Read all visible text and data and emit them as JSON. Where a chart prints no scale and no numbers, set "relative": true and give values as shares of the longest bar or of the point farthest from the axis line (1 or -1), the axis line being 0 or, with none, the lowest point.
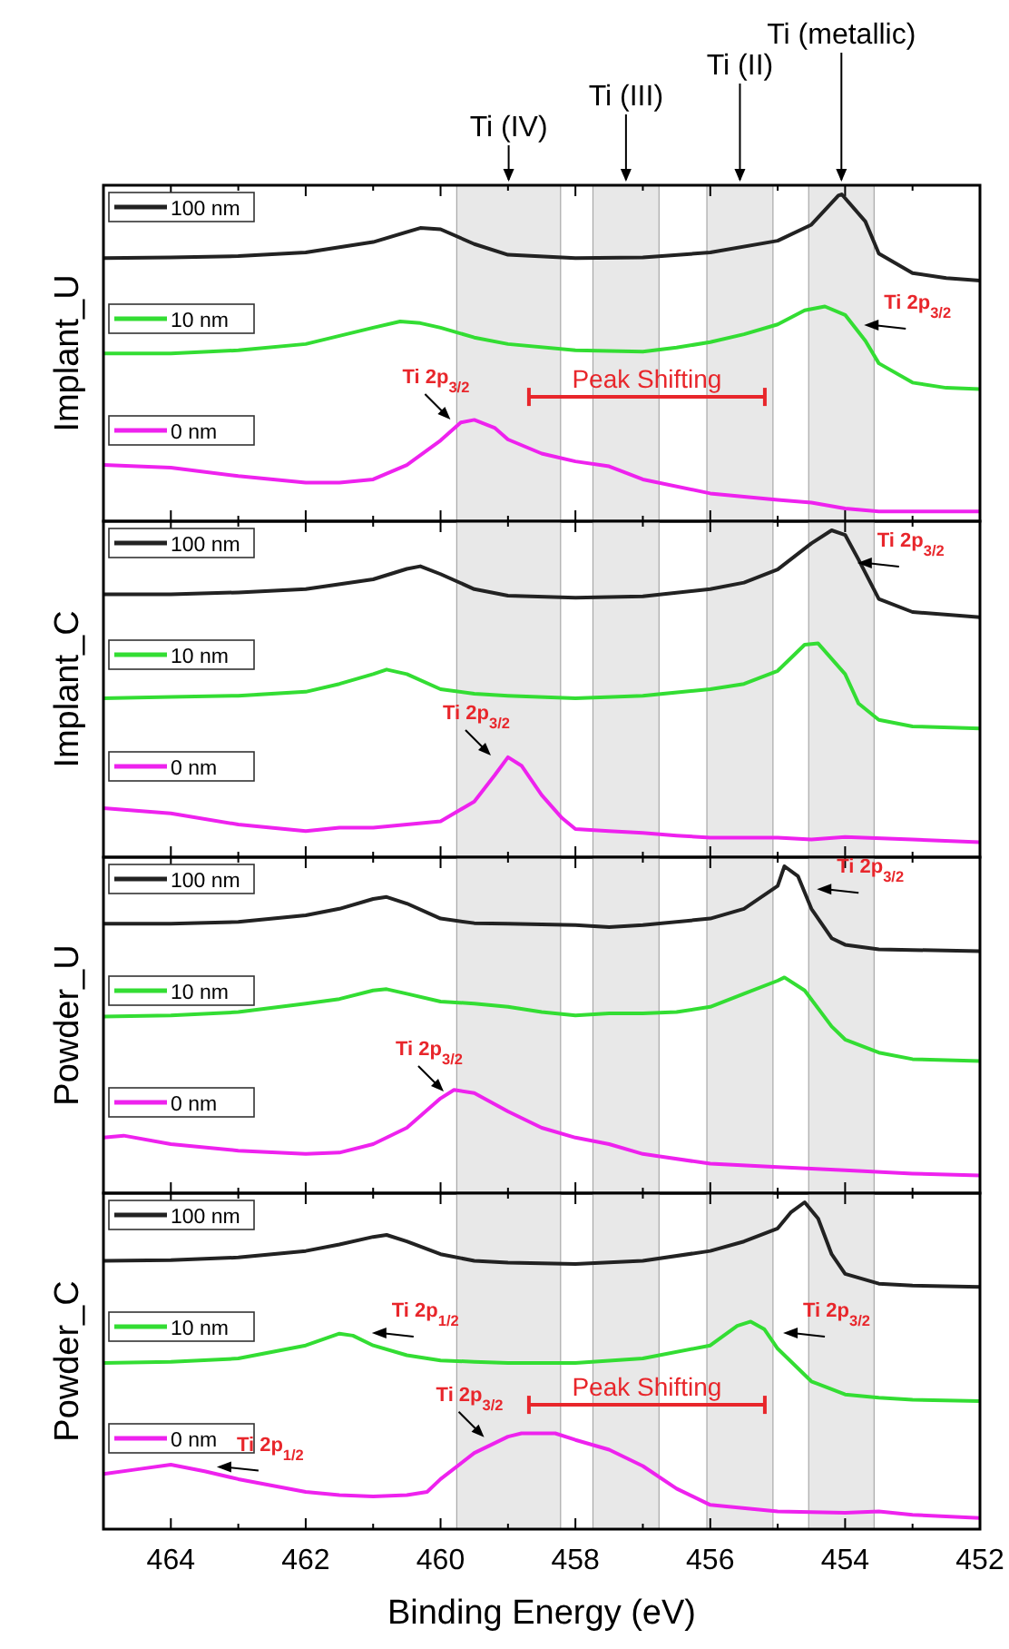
{
  "chart_data": [
    {
      "type": "line",
      "relative": true,
      "ylabel": "Implant_U",
      "xlim": [
        465,
        452
      ],
      "xticks": [
        464,
        {
          "value": 463,
          "label": null
        },
        462,
        {
          "value": 461,
          "label": null
        },
        460,
        {
          "value": 459,
          "label": null
        },
        458,
        {
          "value": 457,
          "label": null
        },
        456,
        {
          "value": 455,
          "label": null
        },
        454,
        {
          "value": 453,
          "label": null
        },
        452
      ],
      "tick_labels": false,
      "legend": "left",
      "bands": [
        {
          "axis": "x",
          "from": 459.76,
          "to": 458.22,
          "label": "Ti (IV)"
        },
        {
          "axis": "x",
          "from": 457.74,
          "to": 456.76,
          "label": "Ti (III)"
        },
        {
          "axis": "x",
          "from": 456.05,
          "to": 455.07,
          "label": "Ti (II)"
        },
        {
          "axis": "x",
          "from": 454.54,
          "to": 453.57,
          "label": "Ti (metallic)"
        }
      ],
      "annotations": [
        {
          "text": "Ti 2p$_{3/2}$",
          "x": 459.8,
          "y": 0.3
        },
        {
          "text": "Ti 2p$_{3/2}$",
          "x": 453.8,
          "y": 0.6
        },
        "Peak Shifting"
      ],
      "series": [
        {
          "name": "100 nm",
          "color": "#222222",
          "x": [
            465,
            464,
            463,
            462,
            461,
            460.3,
            460,
            459.5,
            459,
            458,
            457,
            456,
            455,
            454.5,
            454.1,
            454.05,
            453.7,
            453.5,
            453,
            452.5,
            452
          ],
          "values": [
            0.805,
            0.807,
            0.811,
            0.822,
            0.854,
            0.897,
            0.893,
            0.848,
            0.815,
            0.805,
            0.807,
            0.822,
            0.858,
            0.907,
            0.996,
            1,
            0.917,
            0.819,
            0.759,
            0.744,
            0.736
          ]
        },
        {
          "name": "10 nm",
          "color": "#33dd33",
          "x": [
            465,
            464,
            463,
            462,
            461,
            460.6,
            460.3,
            460,
            459.5,
            459,
            458,
            457,
            456.5,
            456,
            455.5,
            455,
            454.6,
            454.3,
            454,
            453.7,
            453.5,
            453,
            452.5,
            452
          ],
          "values": [
            0.513,
            0.513,
            0.523,
            0.542,
            0.592,
            0.611,
            0.606,
            0.592,
            0.562,
            0.542,
            0.523,
            0.519,
            0.531,
            0.548,
            0.572,
            0.602,
            0.645,
            0.657,
            0.631,
            0.552,
            0.483,
            0.424,
            0.408,
            0.404
          ]
        },
        {
          "name": "0 nm",
          "color": "#ee22ee",
          "x": [
            465,
            464,
            463,
            462,
            461.5,
            461,
            460.5,
            460,
            459.7,
            459.5,
            459.2,
            459,
            458.5,
            458,
            457.5,
            457,
            456,
            455,
            454.5,
            454,
            453.5,
            453,
            452
          ],
          "values": [
            0.172,
            0.164,
            0.138,
            0.118,
            0.118,
            0.128,
            0.172,
            0.247,
            0.302,
            0.31,
            0.286,
            0.25,
            0.207,
            0.183,
            0.168,
            0.128,
            0.085,
            0.065,
            0.057,
            0.039,
            0.03,
            0.03,
            0.03
          ]
        }
      ]
    },
    {
      "type": "line",
      "relative": true,
      "ylabel": "Implant_C",
      "xlim": [
        465,
        452
      ],
      "xticks": [
        464,
        {
          "value": 463,
          "label": null
        },
        462,
        {
          "value": 461,
          "label": null
        },
        460,
        {
          "value": 459,
          "label": null
        },
        458,
        {
          "value": 457,
          "label": null
        },
        456,
        {
          "value": 455,
          "label": null
        },
        454,
        {
          "value": 453,
          "label": null
        },
        452
      ],
      "tick_labels": false,
      "legend": "left",
      "bands": [
        {
          "axis": "x",
          "from": 459.76,
          "to": 458.22
        },
        {
          "axis": "x",
          "from": 457.74,
          "to": 456.76
        },
        {
          "axis": "x",
          "from": 456.05,
          "to": 455.07
        },
        {
          "axis": "x",
          "from": 454.54,
          "to": 453.57
        }
      ],
      "annotations": [
        {
          "text": "Ti 2p$_{3/2}$",
          "x": 453.9,
          "y": 0.9
        },
        {
          "text": "Ti 2p$_{3/2}$",
          "x": 459.2,
          "y": 0.3
        }
      ],
      "series": [
        {
          "name": "100 nm",
          "color": "#222222",
          "x": [
            465,
            464,
            463,
            462,
            461,
            460.5,
            460.3,
            460,
            459.5,
            459,
            458,
            457,
            456,
            455.5,
            455,
            454.5,
            454.2,
            454,
            453.8,
            453.5,
            453,
            452
          ],
          "values": [
            0.804,
            0.804,
            0.81,
            0.82,
            0.85,
            0.882,
            0.89,
            0.866,
            0.82,
            0.8,
            0.794,
            0.798,
            0.82,
            0.84,
            0.88,
            0.96,
            1,
            0.986,
            0.91,
            0.79,
            0.75,
            0.734
          ]
        },
        {
          "name": "10 nm",
          "color": "#33dd33",
          "x": [
            465,
            464,
            463,
            462,
            461.5,
            461,
            460.8,
            460.5,
            460,
            459.5,
            459,
            458,
            457,
            456,
            455.5,
            455,
            454.6,
            454.4,
            454,
            453.8,
            453.5,
            453,
            452
          ],
          "values": [
            0.486,
            0.49,
            0.494,
            0.506,
            0.53,
            0.56,
            0.574,
            0.56,
            0.514,
            0.5,
            0.494,
            0.486,
            0.494,
            0.514,
            0.53,
            0.57,
            0.65,
            0.654,
            0.56,
            0.47,
            0.42,
            0.4,
            0.394
          ]
        },
        {
          "name": "0 nm",
          "color": "#ee22ee",
          "x": [
            465,
            464,
            463,
            462,
            461.5,
            461,
            460.5,
            460,
            459.5,
            459.2,
            459,
            458.8,
            458.5,
            458.2,
            458,
            457.5,
            457,
            456.5,
            456,
            455,
            454.5,
            454,
            453,
            452
          ],
          "values": [
            0.15,
            0.134,
            0.1,
            0.08,
            0.09,
            0.09,
            0.1,
            0.11,
            0.17,
            0.25,
            0.306,
            0.28,
            0.19,
            0.12,
            0.086,
            0.08,
            0.074,
            0.066,
            0.06,
            0.06,
            0.054,
            0.062,
            0.054,
            0.046
          ]
        }
      ]
    },
    {
      "type": "line",
      "relative": true,
      "ylabel": "Powder_U",
      "xlim": [
        465,
        452
      ],
      "xticks": [
        464,
        {
          "value": 463,
          "label": null
        },
        462,
        {
          "value": 461,
          "label": null
        },
        460,
        {
          "value": 459,
          "label": null
        },
        458,
        {
          "value": 457,
          "label": null
        },
        456,
        {
          "value": 455,
          "label": null
        },
        454,
        {
          "value": 453,
          "label": null
        },
        452
      ],
      "tick_labels": false,
      "legend": "left",
      "bands": [
        {
          "axis": "x",
          "from": 459.76,
          "to": 458.22
        },
        {
          "axis": "x",
          "from": 457.74,
          "to": 456.76
        },
        {
          "axis": "x",
          "from": 456.05,
          "to": 455.07
        },
        {
          "axis": "x",
          "from": 454.54,
          "to": 453.57
        }
      ],
      "annotations": [
        {
          "text": "Ti 2p$_{3/2}$",
          "x": 454.5,
          "y": 0.93
        },
        {
          "text": "Ti 2p$_{3/2}$",
          "x": 459.9,
          "y": 0.3
        }
      ],
      "series": [
        {
          "name": "100 nm",
          "color": "#222222",
          "x": [
            465,
            464,
            463,
            462,
            461.5,
            461,
            460.8,
            460.5,
            460,
            459.5,
            459,
            458,
            457.5,
            457,
            456,
            455.5,
            455,
            454.9,
            454.7,
            454.5,
            454.2,
            454,
            453.5,
            453,
            452
          ],
          "values": [
            0.824,
            0.824,
            0.83,
            0.85,
            0.87,
            0.9,
            0.906,
            0.886,
            0.84,
            0.826,
            0.824,
            0.82,
            0.814,
            0.82,
            0.84,
            0.87,
            0.94,
            1,
            0.97,
            0.87,
            0.78,
            0.76,
            0.746,
            0.744,
            0.74
          ]
        },
        {
          "name": "10 nm",
          "color": "#33dd33",
          "x": [
            465,
            464,
            463,
            462,
            461.5,
            461,
            460.8,
            460.5,
            460,
            459.5,
            459,
            458.5,
            458,
            457.5,
            457,
            456.5,
            456,
            455.5,
            455,
            454.9,
            454.6,
            454.2,
            454,
            453.5,
            453,
            452
          ],
          "values": [
            0.54,
            0.544,
            0.554,
            0.58,
            0.594,
            0.62,
            0.624,
            0.61,
            0.586,
            0.58,
            0.57,
            0.554,
            0.544,
            0.55,
            0.55,
            0.554,
            0.57,
            0.61,
            0.65,
            0.66,
            0.62,
            0.51,
            0.47,
            0.43,
            0.41,
            0.404
          ]
        },
        {
          "name": "0 nm",
          "color": "#ee22ee",
          "x": [
            465,
            464.7,
            464,
            463,
            462,
            461.5,
            461,
            460.5,
            460,
            459.8,
            459.5,
            459,
            458.5,
            458,
            457.5,
            457,
            456,
            455,
            454,
            453,
            452
          ],
          "values": [
            0.17,
            0.176,
            0.15,
            0.13,
            0.12,
            0.124,
            0.15,
            0.2,
            0.29,
            0.316,
            0.306,
            0.25,
            0.2,
            0.17,
            0.15,
            0.12,
            0.09,
            0.08,
            0.07,
            0.06,
            0.054
          ]
        }
      ]
    },
    {
      "type": "line",
      "relative": true,
      "ylabel": "Powder_C",
      "xlabel": "Binding Energy (eV)",
      "xlim": [
        465,
        452
      ],
      "xticks": [
        464,
        {
          "value": 463,
          "label": null
        },
        462,
        {
          "value": 461,
          "label": null
        },
        460,
        {
          "value": 459,
          "label": null
        },
        458,
        {
          "value": 457,
          "label": null
        },
        456,
        {
          "value": 455,
          "label": null
        },
        454,
        {
          "value": 453,
          "label": null
        },
        452
      ],
      "tick_labels": "x",
      "legend": "left",
      "bands": [
        {
          "axis": "x",
          "from": 459.76,
          "to": 458.22
        },
        {
          "axis": "x",
          "from": 457.74,
          "to": 456.76
        },
        {
          "axis": "x",
          "from": 456.05,
          "to": 455.07
        },
        {
          "axis": "x",
          "from": 454.54,
          "to": 453.57
        }
      ],
      "annotations": [
        {
          "text": "Ti 2p$_{1/2}$",
          "x": 461.1,
          "y": 0.6
        },
        {
          "text": "Ti 2p$_{3/2}$",
          "x": 455.0,
          "y": 0.6
        },
        {
          "text": "Ti 2p$_{3/2}$",
          "x": 459.3,
          "y": 0.27
        },
        {
          "text": "Ti 2p$_{1/2}$",
          "x": 463.4,
          "y": 0.19
        },
        "Peak Shifting"
      ],
      "series": [
        {
          "name": "100 nm",
          "color": "#222222",
          "x": [
            465,
            464,
            463,
            462,
            461.5,
            461,
            460.8,
            460.5,
            460,
            459.5,
            459,
            458,
            457,
            456,
            455.5,
            455,
            454.8,
            454.6,
            454.4,
            454.2,
            454,
            453.5,
            453,
            452
          ],
          "values": [
            0.821,
            0.823,
            0.831,
            0.851,
            0.871,
            0.894,
            0.9,
            0.88,
            0.841,
            0.821,
            0.815,
            0.811,
            0.821,
            0.851,
            0.88,
            0.92,
            0.97,
            1,
            0.95,
            0.841,
            0.781,
            0.751,
            0.745,
            0.741
          ]
        },
        {
          "name": "10 nm",
          "color": "#33dd33",
          "x": [
            465,
            464,
            463,
            462,
            461.5,
            461.3,
            461,
            460.5,
            460,
            459.5,
            459,
            458,
            457,
            456,
            455.6,
            455.4,
            455.2,
            455,
            454.5,
            454,
            453.5,
            453,
            452
          ],
          "values": [
            0.508,
            0.512,
            0.522,
            0.562,
            0.598,
            0.592,
            0.562,
            0.532,
            0.516,
            0.512,
            0.508,
            0.508,
            0.522,
            0.562,
            0.622,
            0.635,
            0.612,
            0.552,
            0.452,
            0.412,
            0.402,
            0.396,
            0.392
          ]
        },
        {
          "name": "0 nm",
          "color": "#ee22ee",
          "x": [
            465,
            464.5,
            464,
            463.5,
            463,
            462,
            461.5,
            461,
            460.5,
            460.2,
            460,
            459.5,
            459,
            458.8,
            458.3,
            458,
            457.5,
            457,
            456.5,
            456,
            455,
            454,
            453.5,
            453,
            452
          ],
          "values": [
            0.169,
            0.183,
            0.197,
            0.177,
            0.153,
            0.114,
            0.104,
            0.1,
            0.104,
            0.114,
            0.153,
            0.233,
            0.283,
            0.293,
            0.293,
            0.273,
            0.243,
            0.193,
            0.124,
            0.074,
            0.054,
            0.05,
            0.054,
            0.044,
            0.034
          ]
        }
      ]
    }
  ]
}
